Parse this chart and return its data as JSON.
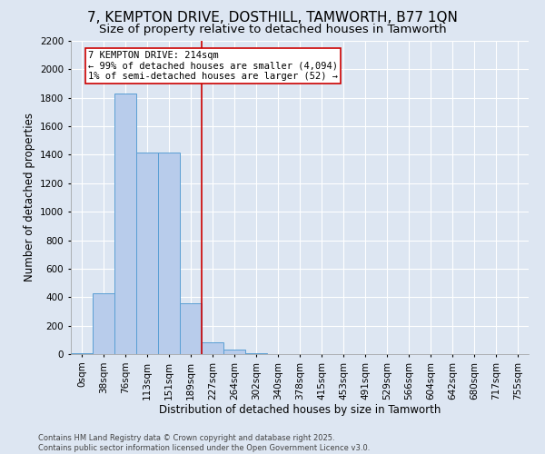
{
  "title": "7, KEMPTON DRIVE, DOSTHILL, TAMWORTH, B77 1QN",
  "subtitle": "Size of property relative to detached houses in Tamworth",
  "xlabel": "Distribution of detached houses by size in Tamworth",
  "ylabel": "Number of detached properties",
  "footer": "Contains HM Land Registry data © Crown copyright and database right 2025.\nContains public sector information licensed under the Open Government Licence v3.0.",
  "bin_labels": [
    "0sqm",
    "38sqm",
    "76sqm",
    "113sqm",
    "151sqm",
    "189sqm",
    "227sqm",
    "264sqm",
    "302sqm",
    "340sqm",
    "378sqm",
    "415sqm",
    "453sqm",
    "491sqm",
    "529sqm",
    "566sqm",
    "604sqm",
    "642sqm",
    "680sqm",
    "717sqm",
    "755sqm"
  ],
  "bar_values": [
    5,
    425,
    1830,
    1415,
    1415,
    360,
    80,
    30,
    5,
    2,
    1,
    0,
    0,
    0,
    0,
    0,
    0,
    0,
    0,
    0,
    0
  ],
  "bar_color": "#b8cceb",
  "bar_edge_color": "#5a9fd4",
  "background_color": "#dde6f2",
  "grid_color": "#ffffff",
  "vline_x": 5.5,
  "vline_color": "#cc0000",
  "annotation_text": "7 KEMPTON DRIVE: 214sqm\n← 99% of detached houses are smaller (4,094)\n1% of semi-detached houses are larger (52) →",
  "annotation_box_color": "#cc0000",
  "ylim": [
    0,
    2200
  ],
  "yticks": [
    0,
    200,
    400,
    600,
    800,
    1000,
    1200,
    1400,
    1600,
    1800,
    2000,
    2200
  ],
  "title_fontsize": 11,
  "subtitle_fontsize": 9.5,
  "axis_label_fontsize": 8.5,
  "tick_fontsize": 7.5,
  "annotation_fontsize": 7.5,
  "footer_fontsize": 6
}
